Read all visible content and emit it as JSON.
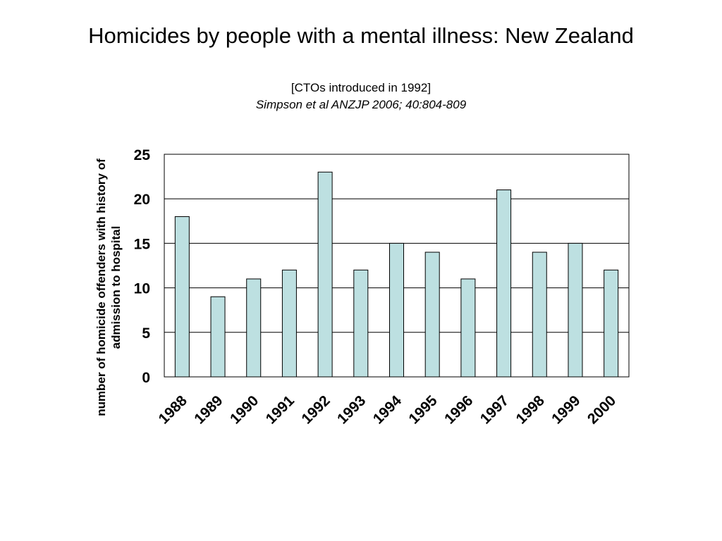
{
  "slide": {
    "title": "Homicides by people with a mental illness: New Zealand",
    "subtitle": "[CTOs introduced in 1992]",
    "citation": "Simpson et al ANZJP 2006; 40:804-809"
  },
  "colors": {
    "bar_fill": "#bde0e1",
    "bar_stroke": "#000000",
    "gridline": "#000000"
  },
  "chart_data": {
    "type": "bar",
    "title": "Homicides by people with a mental illness: New Zealand",
    "subtitle": "[CTOs introduced in 1992]",
    "xlabel": "",
    "ylabel": "number of homicide offenders with history of admission to hospital",
    "ylabel_lines": [
      "number of homicide offenders with history of",
      "admission to hospital"
    ],
    "categories": [
      "1988",
      "1989",
      "1990",
      "1991",
      "1992",
      "1993",
      "1994",
      "1995",
      "1996",
      "1997",
      "1998",
      "1999",
      "2000"
    ],
    "values": [
      18,
      9,
      11,
      12,
      23,
      12,
      15,
      14,
      11,
      21,
      14,
      15,
      12
    ],
    "ylim": [
      0,
      25
    ],
    "yticks": [
      0,
      5,
      10,
      15,
      20,
      25
    ],
    "grid": true,
    "legend": "none"
  }
}
